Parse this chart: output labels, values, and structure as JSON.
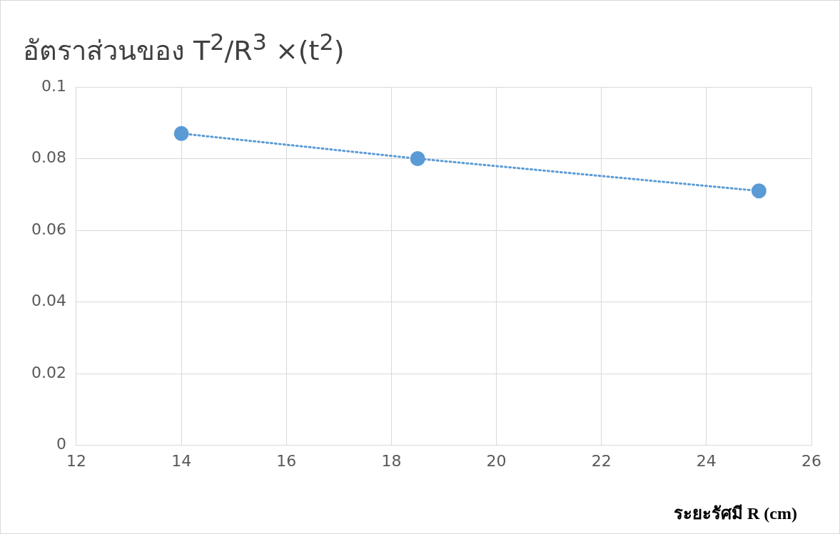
{
  "chart_data": {
    "type": "line",
    "title": "อัตราส่วนของ T$^{2}$/R$^{3}$ ×(t$^{2}$)",
    "xlabel": "ระยะรัศมี R (cm)",
    "x": [
      14,
      18.5,
      25
    ],
    "series": [
      {
        "color": "#5b9bd5",
        "values": [
          0.087,
          0.08,
          0.071
        ]
      }
    ],
    "xlim": [
      12,
      26
    ],
    "xticks": [
      12,
      14,
      16,
      18,
      20,
      22,
      24,
      26
    ],
    "ylim": [
      0,
      0.1
    ],
    "yticks": [
      0,
      0.02,
      0.04,
      0.06,
      0.08,
      0.1
    ],
    "grid": true,
    "legend": false,
    "marker": "circle",
    "line_style": "dotted"
  }
}
